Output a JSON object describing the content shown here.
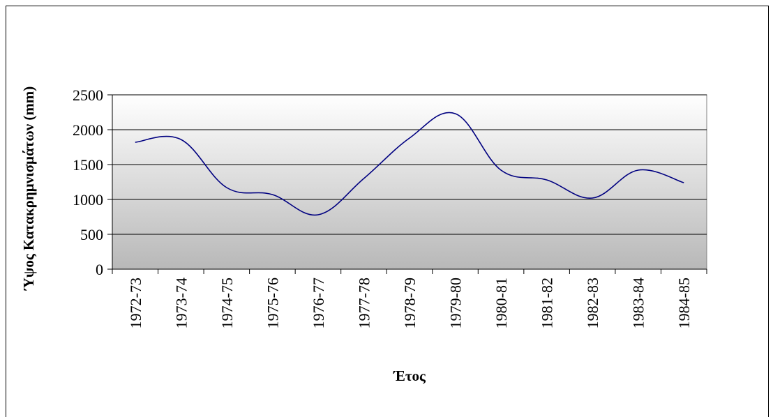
{
  "chart_data": {
    "type": "line",
    "title": "",
    "xlabel": "Έτος",
    "ylabel": "Ύψος  Κατακρημνισμάτων (mm)",
    "categories": [
      "1972-73",
      "1973-74",
      "1974-75",
      "1975-76",
      "1976-77",
      "1977-78",
      "1978-79",
      "1979-80",
      "1980-81",
      "1981-82",
      "1982-83",
      "1983-84",
      "1984-85"
    ],
    "ylim": [
      0,
      2500
    ],
    "yticks": [
      "0",
      "500",
      "1000",
      "1500",
      "2000",
      "2500"
    ],
    "grid": true,
    "legend": "none",
    "series": [
      {
        "values": [
          1820,
          1860,
          1170,
          1070,
          780,
          1300,
          1880,
          2230,
          1420,
          1280,
          1020,
          1420,
          1240
        ]
      }
    ],
    "colors": {
      "line": "#000080",
      "plot_top": "#ffffff",
      "plot_bottom": "#b8b8b8",
      "frame": "#808080"
    }
  }
}
